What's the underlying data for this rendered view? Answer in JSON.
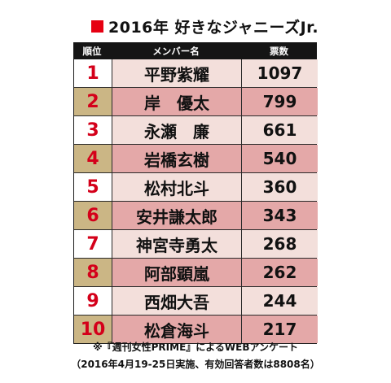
{
  "title": "2016年 好きなジャニーズJr.",
  "colors": {
    "accent": "#e60012",
    "rank_text": "#d4001a"
  },
  "table": {
    "headers": {
      "rank": "順位",
      "name": "メンバー名",
      "votes": "票数"
    },
    "rows": [
      {
        "rank": "1",
        "name": "平野紫耀",
        "votes": "1097"
      },
      {
        "rank": "2",
        "name": "岸　優太",
        "votes": "799"
      },
      {
        "rank": "3",
        "name": "永瀬　廉",
        "votes": "661"
      },
      {
        "rank": "4",
        "name": "岩橋玄樹",
        "votes": "540"
      },
      {
        "rank": "5",
        "name": "松村北斗",
        "votes": "360"
      },
      {
        "rank": "6",
        "name": "安井謙太郎",
        "votes": "343"
      },
      {
        "rank": "7",
        "name": "神宮寺勇太",
        "votes": "268"
      },
      {
        "rank": "8",
        "name": "阿部顕嵐",
        "votes": "262"
      },
      {
        "rank": "9",
        "name": "西畑大吾",
        "votes": "244"
      },
      {
        "rank": "10",
        "name": "松倉海斗",
        "votes": "217"
      }
    ]
  },
  "footnote": {
    "line1": "※『週刊女性PRIME』によるWEBアンケート",
    "line2": "（2016年4月19-25日実施、有効回答者数は8808名）"
  }
}
